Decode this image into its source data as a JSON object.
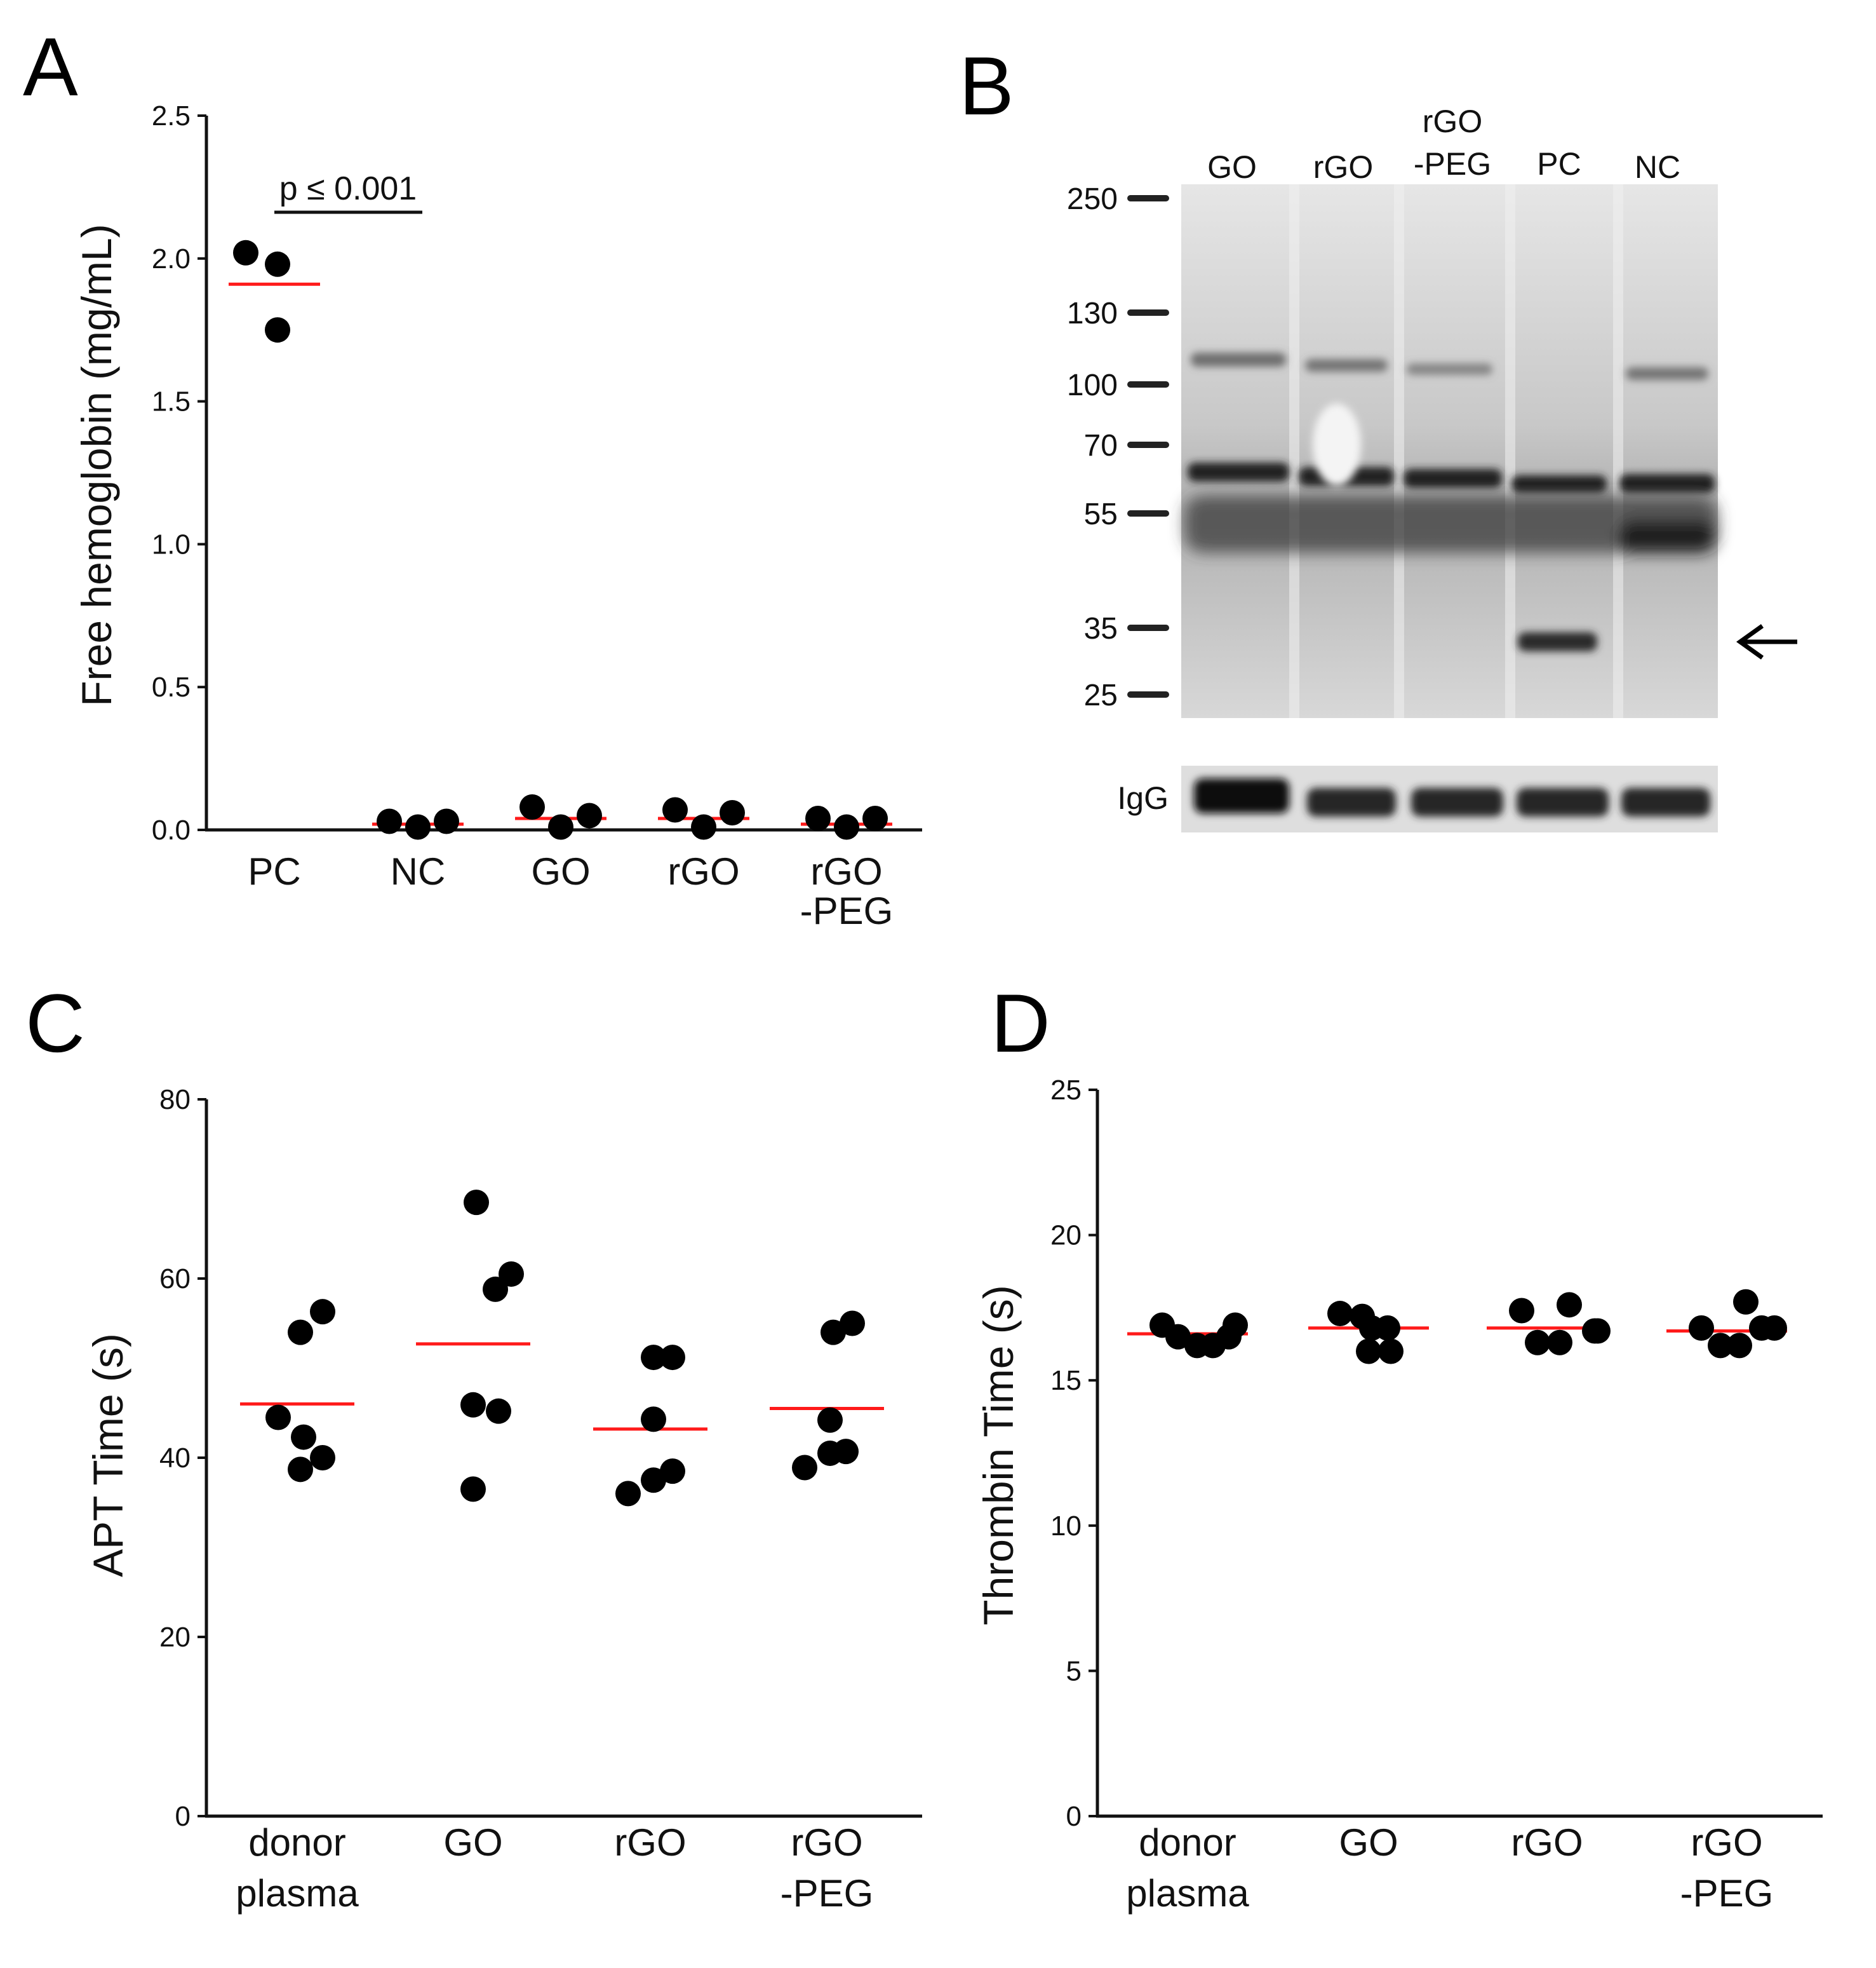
{
  "colors": {
    "dot": "#000000",
    "mean_line": "#ff1a1a",
    "axis": "#111111"
  },
  "panel_b": {
    "letter": "B",
    "lane_labels": [
      {
        "lines": [
          "GO"
        ]
      },
      {
        "lines": [
          "rGO"
        ]
      },
      {
        "lines": [
          "rGO",
          "-PEG"
        ]
      },
      {
        "lines": [
          "PC"
        ]
      },
      {
        "lines": [
          "NC"
        ]
      }
    ],
    "ladder": [
      "250",
      "130",
      "100",
      "70",
      "55",
      "35",
      "25"
    ],
    "loading_control_label": "IgG",
    "arrow_icon": "left-arrow-icon"
  },
  "chart_data": [
    {
      "panel": "A",
      "type": "scatter",
      "title": "",
      "ylabel": "Free hemoglobin (mg/mL)",
      "xlabel": "",
      "ylim": [
        0,
        2.5
      ],
      "yticks": [
        0.0,
        0.5,
        1.0,
        1.5,
        2.0,
        2.5
      ],
      "ytick_labels": [
        "0.0",
        "0.5",
        "1.0",
        "1.5",
        "2.0",
        "2.5"
      ],
      "categories": [
        [
          "PC"
        ],
        [
          "NC"
        ],
        [
          "GO"
        ],
        [
          "rGO"
        ],
        [
          "rGO",
          "-PEG"
        ]
      ],
      "points": [
        [
          2.02,
          1.98,
          1.75
        ],
        [
          0.03,
          0.01,
          0.03
        ],
        [
          0.08,
          0.01,
          0.05
        ],
        [
          0.07,
          0.01,
          0.06
        ],
        [
          0.04,
          0.01,
          0.04
        ]
      ],
      "means": [
        1.91,
        0.02,
        0.04,
        0.04,
        0.02
      ],
      "annotations": [
        {
          "text": "p ≤ 0.001",
          "between": [
            0,
            1
          ]
        }
      ]
    },
    {
      "panel": "C",
      "type": "scatter",
      "title": "",
      "ylabel": "APT Time (s)",
      "xlabel": "",
      "ylim": [
        0,
        80
      ],
      "yticks": [
        0,
        20,
        40,
        60,
        80
      ],
      "ytick_labels": [
        "0",
        "20",
        "40",
        "60",
        "80"
      ],
      "categories": [
        [
          "donor",
          "plasma"
        ],
        [
          "GO"
        ],
        [
          "rGO"
        ],
        [
          "rGO",
          "-PEG"
        ]
      ],
      "points": [
        [
          56.3,
          54.0,
          44.5,
          42.3,
          40.0,
          38.7
        ],
        [
          68.5,
          60.5,
          58.8,
          45.9,
          45.2,
          36.5
        ],
        [
          51.2,
          51.2,
          44.3,
          38.5,
          37.5,
          36.0
        ],
        [
          55.0,
          54.0,
          44.2,
          40.7,
          40.5,
          38.9
        ]
      ],
      "means": [
        46.0,
        52.7,
        43.2,
        45.5
      ]
    },
    {
      "panel": "D",
      "type": "scatter",
      "title": "",
      "ylabel": "Thrombin Time (s)",
      "xlabel": "",
      "ylim": [
        0,
        25
      ],
      "yticks": [
        0,
        5,
        10,
        15,
        20,
        25
      ],
      "ytick_labels": [
        "0",
        "5",
        "10",
        "15",
        "20",
        "25"
      ],
      "categories": [
        [
          "donor",
          "plasma"
        ],
        [
          "GO"
        ],
        [
          "rGO"
        ],
        [
          "rGO",
          "-PEG"
        ]
      ],
      "points": [
        [
          16.9,
          16.5,
          16.2,
          16.2,
          16.5,
          16.9
        ],
        [
          17.3,
          17.2,
          16.8,
          16.0,
          16.0,
          16.8
        ],
        [
          17.4,
          17.6,
          16.7,
          16.3,
          16.3,
          16.7
        ],
        [
          16.8,
          17.7,
          16.8,
          16.2,
          16.2,
          16.8
        ]
      ],
      "means": [
        16.6,
        16.8,
        16.8,
        16.7
      ]
    }
  ]
}
